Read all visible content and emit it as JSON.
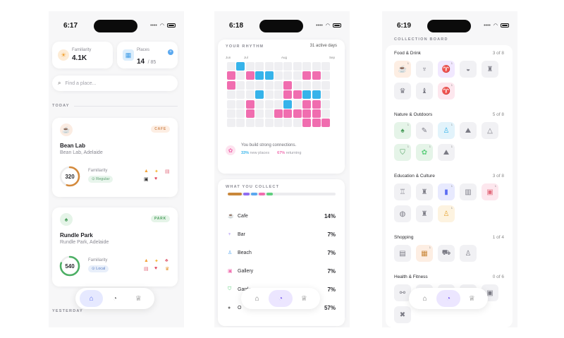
{
  "screen1": {
    "time": "6:17",
    "familiarity": {
      "label": "Familiarity",
      "value": "4.1K"
    },
    "places": {
      "label": "Places",
      "value": "14",
      "total": "/ 85"
    },
    "search_placeholder": "Find a place...",
    "section_today": "TODAY",
    "section_yesterday": "YESTERDAY",
    "cards": [
      {
        "name": "Bean Lab",
        "address": "Bean Lab, Adelaide",
        "tag": "CAFE",
        "score": "320",
        "fam_label": "Familiarity",
        "status": "Regular",
        "ring_fraction": 0.55
      },
      {
        "name": "Rundle Park",
        "address": "Rundle Park, Adelaide",
        "tag": "PARK",
        "score": "540",
        "fam_label": "Familiarity",
        "status": "Local",
        "ring_fraction": 0.8
      }
    ]
  },
  "screen2": {
    "time": "6:18",
    "rhythm_title": "YOUR RHYTHM",
    "active_days": "31 active days",
    "months": [
      "Jun",
      "Jul",
      "Aug",
      "Sep"
    ],
    "rhythm_note": "You build strong connections.",
    "new_pct": "33%",
    "new_label": "new places",
    "ret_pct": "67%",
    "ret_label": "returning",
    "collect_title": "WHAT YOU COLLECT",
    "collect_rows": [
      {
        "icon": "cup-icon",
        "label": "Cafe",
        "pct": "14%"
      },
      {
        "icon": "glass-icon",
        "label": "Bar",
        "pct": "7%"
      },
      {
        "icon": "person-icon",
        "label": "Beach",
        "pct": "7%"
      },
      {
        "icon": "image-icon",
        "label": "Gallery",
        "pct": "7%"
      },
      {
        "icon": "shield-icon",
        "label": "Garden",
        "pct": "7%"
      },
      {
        "icon": "dot-icon",
        "label": "O",
        "pct": "57%"
      }
    ],
    "colors": {
      "pink": "#f06daf",
      "blue": "#36b3ea",
      "empty": "#efeff2"
    }
  },
  "screen3": {
    "time": "6:19",
    "board_title": "COLLECTION BOARD",
    "sections": [
      {
        "name": "Food & Drink",
        "count": "3 of 8"
      },
      {
        "name": "Nature & Outdoors",
        "count": "5 of 8"
      },
      {
        "name": "Education & Culture",
        "count": "3 of 8"
      },
      {
        "name": "Shopping",
        "count": "1 of 4"
      },
      {
        "name": "Health & Fitness",
        "count": "0 of 6"
      }
    ]
  }
}
